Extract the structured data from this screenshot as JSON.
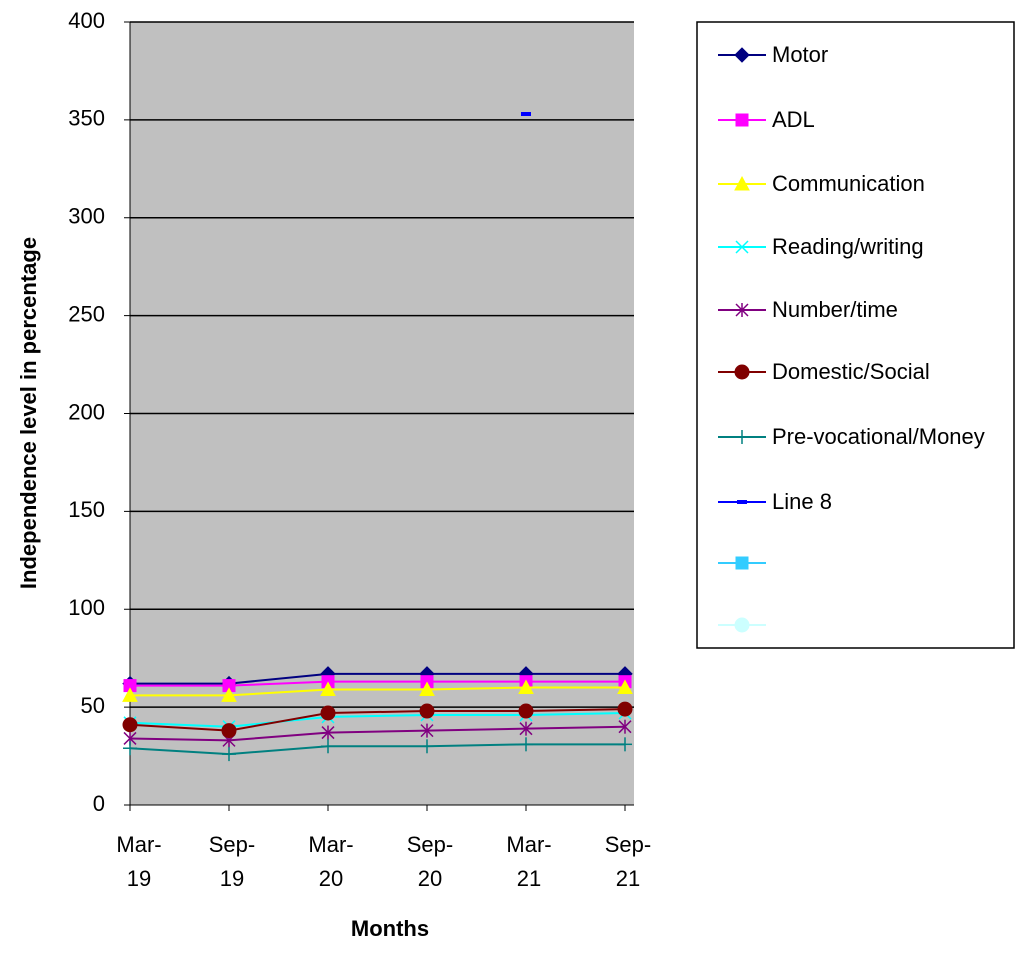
{
  "chart_data": {
    "type": "line",
    "x_label": "Months",
    "y_label": "Independence level in percentage",
    "categories": [
      "Mar-19",
      "Sep-19",
      "Mar-20",
      "Sep-20",
      "Mar-21",
      "Sep-21"
    ],
    "ylim": [
      0,
      400
    ],
    "yticks": [
      0,
      50,
      100,
      150,
      200,
      250,
      300,
      350,
      400
    ],
    "grid": true,
    "background": "#c0c0c0",
    "legend": "right",
    "series": [
      {
        "name": "Motor",
        "color": "#000080",
        "marker": "diamond",
        "values": [
          62,
          62,
          67,
          67,
          67,
          67
        ]
      },
      {
        "name": "ADL",
        "color": "#ff00ff",
        "marker": "square",
        "values": [
          61,
          61,
          63,
          63,
          63,
          63
        ]
      },
      {
        "name": "Communication",
        "color": "#ffff00",
        "marker": "triangle",
        "values": [
          56,
          56,
          59,
          59,
          60,
          60
        ]
      },
      {
        "name": "Reading/writing",
        "color": "#00ffff",
        "marker": "x",
        "values": [
          42,
          40,
          45,
          46,
          46,
          47
        ]
      },
      {
        "name": "Number/time",
        "color": "#800080",
        "marker": "star",
        "values": [
          34,
          33,
          37,
          38,
          39,
          40
        ]
      },
      {
        "name": "Domestic/Social",
        "color": "#800000",
        "marker": "circle",
        "values": [
          41,
          38,
          47,
          48,
          48,
          49
        ]
      },
      {
        "name": "Pre-vocational/Money",
        "color": "#008080",
        "marker": "plus",
        "values": [
          29,
          26,
          30,
          30,
          31,
          31
        ]
      },
      {
        "name": "Line 8",
        "color": "#0000ff",
        "marker": "dash",
        "values": [
          null,
          null,
          null,
          null,
          353,
          null
        ]
      },
      {
        "name": null,
        "color": "#33ccff",
        "marker": "square",
        "values": [
          null,
          null,
          null,
          null,
          null,
          null
        ]
      },
      {
        "name": null,
        "color": "#ccffff",
        "marker": "circle",
        "values": [
          null,
          null,
          null,
          null,
          null,
          null
        ]
      }
    ]
  }
}
